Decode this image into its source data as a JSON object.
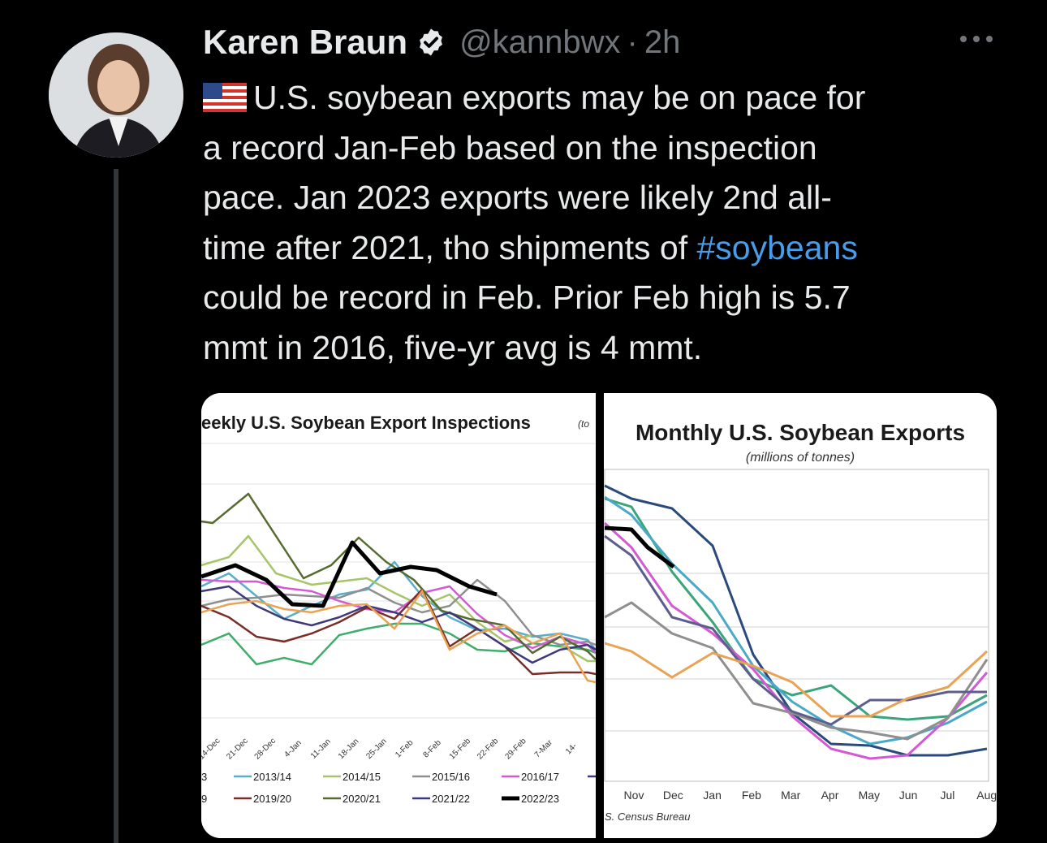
{
  "tweet": {
    "author_name": "Karen Braun",
    "handle": "@kannbwx",
    "separator": "·",
    "time": "2h",
    "flag_emoji": "us-flag",
    "lines": [
      "U.S. soybean exports may be on pace for",
      "a record Jan-Feb based on the inspection",
      "pace. Jan 2023 exports were likely 2nd all-",
      "time after 2021, tho shipments of ",
      "could be record in Feb. Prior Feb high is 5.7",
      "mmt in 2016, five-yr avg is 4 mmt."
    ],
    "hashtag": "#soybeans",
    "icons": {
      "verified": "verified-badge-icon",
      "more": "more-options-icon"
    },
    "colors": {
      "background": "#000000",
      "text": "#e7e9ea",
      "muted": "#71767b",
      "link": "#4a9ce9"
    }
  },
  "chart_data": [
    {
      "type": "line",
      "title": "eekly U.S. Soybean Export Inspections",
      "unit_fragment": "(to",
      "categories": [
        "14-Dec",
        "21-Dec",
        "28-Dec",
        "4-Jan",
        "11-Jan",
        "18-Jan",
        "25-Jan",
        "1-Feb",
        "8-Feb",
        "15-Feb",
        "22-Feb",
        "29-Feb",
        "7-Mar",
        "14-"
      ],
      "legend": [
        "3",
        "2013/14",
        "2014/15",
        "2015/16",
        "2016/17",
        "9",
        "2019/20",
        "2020/21",
        "2021/22",
        "2022/23"
      ],
      "series": [
        {
          "name": "2013/14",
          "color": "#5aaec8"
        },
        {
          "name": "2014/15",
          "color": "#a7c46a"
        },
        {
          "name": "2015/16",
          "color": "#8f8f8f"
        },
        {
          "name": "2016/17",
          "color": "#d45ad4"
        },
        {
          "name": "2019/20",
          "color": "#7a2c26"
        },
        {
          "name": "2020/21",
          "color": "#556b2f"
        },
        {
          "name": "2021/22",
          "color": "#3e3a7a"
        },
        {
          "name": "2022/23",
          "color": "#000000"
        }
      ]
    },
    {
      "type": "line",
      "title": "Monthly U.S. Soybean Exports",
      "subtitle": "(millions of tonnes)",
      "categories": [
        "Nov",
        "Dec",
        "Jan",
        "Feb",
        "Mar",
        "Apr",
        "May",
        "Jun",
        "Jul",
        "Aug"
      ],
      "source": "S. Census Bureau"
    }
  ]
}
